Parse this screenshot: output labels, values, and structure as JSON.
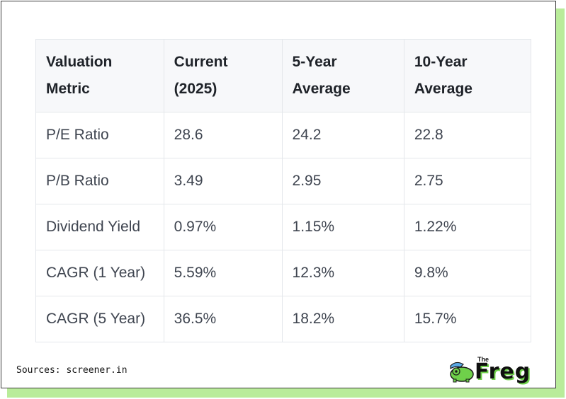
{
  "table": {
    "headers": [
      [
        "Valuation",
        "Metric"
      ],
      [
        "Current",
        "(2025)"
      ],
      [
        "5-Year",
        "Average"
      ],
      [
        "10-Year",
        "Average"
      ]
    ],
    "rows": [
      [
        "P/E Ratio",
        "28.6",
        "24.2",
        "22.8"
      ],
      [
        "P/B Ratio",
        "3.49",
        "2.95",
        "2.75"
      ],
      [
        "Dividend Yield",
        "0.97%",
        "1.15%",
        "1.22%"
      ],
      [
        "CAGR (1 Year)",
        "5.59%",
        "12.3%",
        "9.8%"
      ],
      [
        "CAGR (5 Year)",
        "36.5%",
        "18.2%",
        "15.7%"
      ]
    ]
  },
  "footer": {
    "sources": "Sources: screener.in"
  },
  "logo": {
    "the": "The",
    "word": "Freg",
    "icon": "frog-mascot-icon"
  },
  "colors": {
    "accent_green": "#b9ec9a",
    "logo_green": "#6fd04a",
    "header_bg": "#f7f8fa"
  }
}
